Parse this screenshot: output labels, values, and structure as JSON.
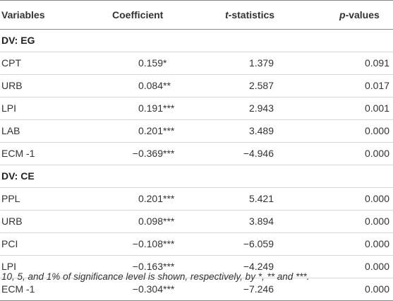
{
  "headers": {
    "variables": "Variables",
    "coefficient": "Coefficient",
    "t_prefix": "t",
    "t_suffix": "-statistics",
    "p_prefix": "p",
    "p_suffix": "-values"
  },
  "groups": [
    {
      "title": "DV: EG",
      "rows": [
        {
          "variable": "CPT",
          "coef": "0.159",
          "stars": "*",
          "t": "1.379",
          "p": "0.091"
        },
        {
          "variable": "URB",
          "coef": "0.084",
          "stars": "**",
          "t": "2.587",
          "p": "0.017"
        },
        {
          "variable": "LPI",
          "coef": "0.191",
          "stars": "***",
          "t": "2.943",
          "p": "0.001"
        },
        {
          "variable": "LAB",
          "coef": "0.201",
          "stars": "***",
          "t": "3.489",
          "p": "0.000"
        },
        {
          "variable": "ECM -1",
          "coef": "−0.369",
          "stars": "***",
          "t": "−4.946",
          "p": "0.000"
        }
      ]
    },
    {
      "title": "DV: CE",
      "rows": [
        {
          "variable": "PPL",
          "coef": "0.201",
          "stars": "***",
          "t": "5.421",
          "p": "0.000"
        },
        {
          "variable": "URB",
          "coef": "0.098",
          "stars": "***",
          "t": "3.894",
          "p": "0.000"
        },
        {
          "variable": "PCI",
          "coef": "−0.108",
          "stars": "***",
          "t": "−6.059",
          "p": "0.000"
        },
        {
          "variable": "LPI",
          "coef": "−0.163",
          "stars": "***",
          "t": "−4.249",
          "p": "0.000"
        },
        {
          "variable": "ECM -1",
          "coef": "−0.304",
          "stars": "***",
          "t": "−7.246",
          "p": "0.000"
        }
      ]
    }
  ],
  "footnote": "10, 5, and 1% of significance level is shown, respectively, by *, ** and ***."
}
